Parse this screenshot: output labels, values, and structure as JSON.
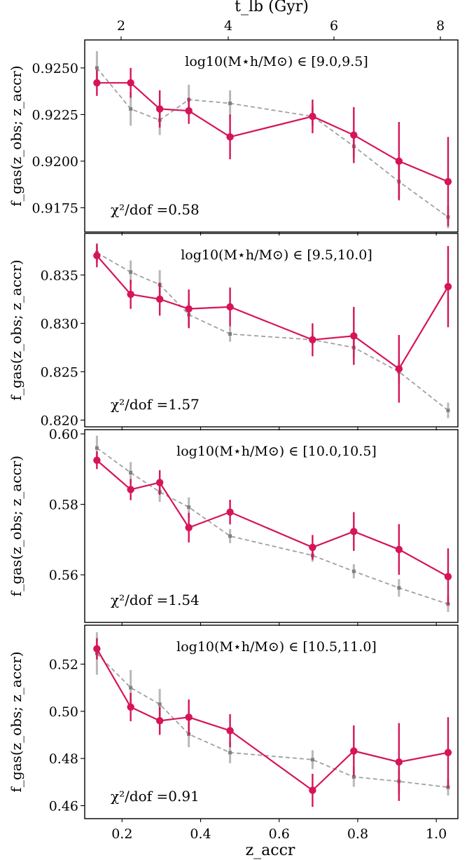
{
  "figure": {
    "top_axis_label": "t_lb (Gyr)",
    "top_ticks": [
      2,
      4,
      6,
      8
    ],
    "x_label": "z_accr",
    "x_ticks": [
      "0.2",
      "0.4",
      "0.6",
      "0.8",
      "1.0"
    ],
    "y_label": "f_gas(z_obs; z_accr)",
    "colors": {
      "primary": "#d6145a",
      "secondary": "#a0a0a0"
    }
  },
  "chart_data": [
    {
      "type": "line",
      "title": "log10(M⋆h/M⊙) ∈ [9.0,9.5]",
      "annotation": "χ²/dof =0.58",
      "ylim": [
        0.9162,
        0.9265
      ],
      "yticks": [
        0.9175,
        0.92,
        0.9225,
        0.925
      ],
      "ytick_labels": [
        "0.9175",
        "0.9200",
        "0.9225",
        "0.9250"
      ],
      "xlim": [
        0.105,
        1.055
      ],
      "series": [
        {
          "x": [
            0.136,
            0.222,
            0.296,
            0.37,
            0.475,
            0.685,
            0.79,
            0.905,
            1.03
          ],
          "values": [
            0.9242,
            0.9242,
            0.9228,
            0.9227,
            0.9213,
            0.9224,
            0.9214,
            0.92,
            0.9189
          ],
          "errors": [
            0.0007,
            0.0008,
            0.001,
            0.0007,
            0.0012,
            0.0009,
            0.0015,
            0.0021,
            0.0024
          ]
        },
        {
          "x": [
            0.136,
            0.222,
            0.296,
            0.37,
            0.475,
            0.685,
            0.79,
            0.905,
            1.03
          ],
          "values": [
            0.925,
            0.9228,
            0.9222,
            0.9233,
            0.9231,
            0.9224,
            0.9208,
            0.9189,
            0.917
          ],
          "errors": [
            0.0009,
            0.0009,
            0.0008,
            0.0008,
            0.0007,
            0.0005,
            0.0006,
            0.0009,
            0.0006
          ]
        }
      ]
    },
    {
      "type": "line",
      "title": "log10(M⋆h/M⊙) ∈ [9.5,10.0]",
      "annotation": "χ²/dof =1.57",
      "ylim": [
        0.8193,
        0.8393
      ],
      "yticks": [
        0.82,
        0.825,
        0.83,
        0.835
      ],
      "ytick_labels": [
        "0.820",
        "0.825",
        "0.830",
        "0.835"
      ],
      "xlim": [
        0.105,
        1.055
      ],
      "series": [
        {
          "x": [
            0.136,
            0.222,
            0.296,
            0.37,
            0.475,
            0.685,
            0.79,
            0.905,
            1.03
          ],
          "values": [
            0.837,
            0.833,
            0.8325,
            0.8315,
            0.8317,
            0.8283,
            0.8287,
            0.8253,
            0.8338
          ],
          "errors": [
            0.0012,
            0.0015,
            0.0017,
            0.002,
            0.002,
            0.0017,
            0.003,
            0.0035,
            0.0042
          ]
        },
        {
          "x": [
            0.136,
            0.222,
            0.296,
            0.37,
            0.475,
            0.685,
            0.79,
            0.905,
            1.03
          ],
          "values": [
            0.8373,
            0.8353,
            0.834,
            0.8309,
            0.8289,
            0.8283,
            0.8275,
            0.825,
            0.821
          ],
          "errors": [
            0.001,
            0.0012,
            0.0015,
            0.0013,
            0.0008,
            0.0006,
            0.001,
            0.0012,
            0.0008
          ]
        }
      ]
    },
    {
      "type": "line",
      "title": "log10(M⋆h/M⊙) ∈ [10.0,10.5]",
      "annotation": "χ²/dof =1.54",
      "ylim": [
        0.5465,
        0.6012
      ],
      "yticks": [
        0.56,
        0.58,
        0.6
      ],
      "ytick_labels": [
        "0.56",
        "0.58",
        "0.60"
      ],
      "xlim": [
        0.105,
        1.055
      ],
      "series": [
        {
          "x": [
            0.136,
            0.222,
            0.296,
            0.37,
            0.475,
            0.685,
            0.79,
            0.905,
            1.03
          ],
          "values": [
            0.5925,
            0.5842,
            0.5862,
            0.5734,
            0.5778,
            0.5678,
            0.5723,
            0.5672,
            0.5595
          ],
          "errors": [
            0.0025,
            0.003,
            0.0035,
            0.0042,
            0.0035,
            0.0035,
            0.0055,
            0.0072,
            0.008
          ]
        },
        {
          "x": [
            0.136,
            0.222,
            0.296,
            0.37,
            0.475,
            0.685,
            0.79,
            0.905,
            1.03
          ],
          "values": [
            0.596,
            0.589,
            0.5835,
            0.5792,
            0.571,
            0.5655,
            0.561,
            0.5563,
            0.5517
          ],
          "errors": [
            0.0035,
            0.003,
            0.0028,
            0.0028,
            0.002,
            0.0018,
            0.002,
            0.0025,
            0.0022
          ]
        }
      ]
    },
    {
      "type": "line",
      "title": "log10(M⋆h/M⊙) ∈ [10.5,11.0]",
      "annotation": "χ²/dof =0.91",
      "ylim": [
        0.4545,
        0.5365
      ],
      "yticks": [
        0.46,
        0.48,
        0.5,
        0.52
      ],
      "ytick_labels": [
        "0.46",
        "0.48",
        "0.50",
        "0.52"
      ],
      "xlim": [
        0.105,
        1.055
      ],
      "series": [
        {
          "x": [
            0.136,
            0.222,
            0.296,
            0.37,
            0.475,
            0.685,
            0.79,
            0.905,
            1.03
          ],
          "values": [
            0.5265,
            0.5018,
            0.496,
            0.4975,
            0.4918,
            0.4665,
            0.4832,
            0.4785,
            0.4825
          ],
          "errors": [
            0.0045,
            0.006,
            0.006,
            0.0075,
            0.007,
            0.007,
            0.0108,
            0.0165,
            0.015
          ]
        },
        {
          "x": [
            0.136,
            0.222,
            0.296,
            0.37,
            0.475,
            0.685,
            0.79,
            0.905,
            1.03
          ],
          "values": [
            0.5245,
            0.51,
            0.503,
            0.4903,
            0.4825,
            0.4795,
            0.4722,
            0.4703,
            0.4678
          ],
          "errors": [
            0.009,
            0.0075,
            0.0065,
            0.0055,
            0.0045,
            0.004,
            0.0042,
            0.005,
            0.0035
          ]
        }
      ]
    }
  ]
}
